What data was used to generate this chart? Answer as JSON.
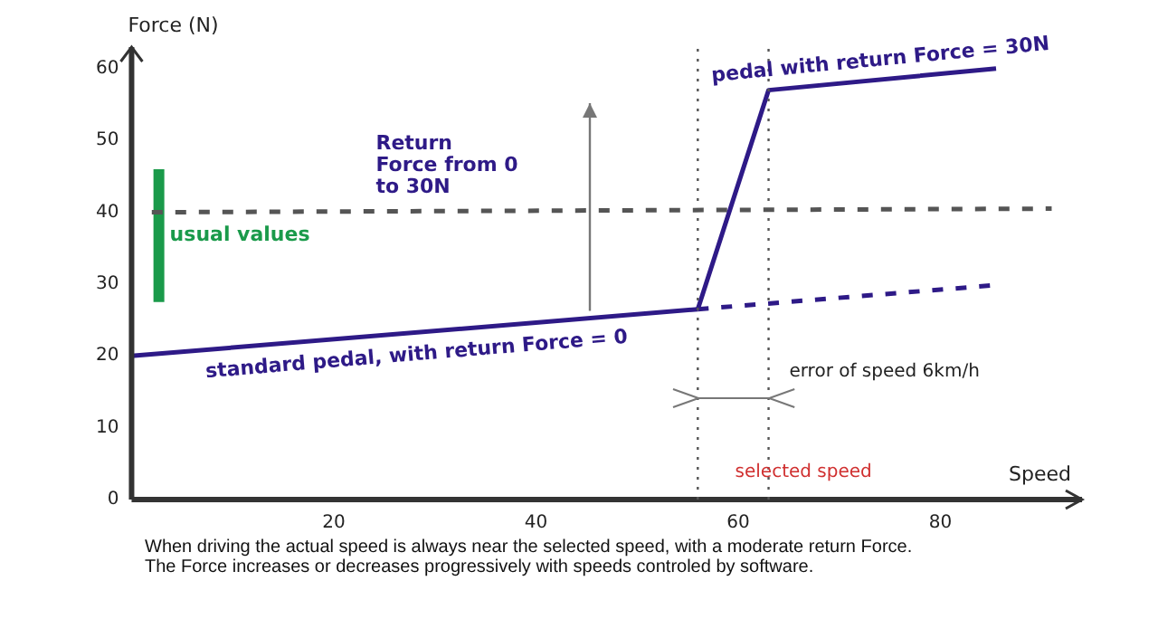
{
  "chart_data": {
    "type": "line",
    "xlabel": "Speed",
    "ylabel": "Force (N)",
    "xlim": [
      0,
      94
    ],
    "ylim": [
      0,
      63
    ],
    "xticks": [
      20,
      40,
      60,
      80
    ],
    "yticks": [
      0,
      10,
      20,
      30,
      40,
      50,
      60
    ],
    "grid": false,
    "legend": false,
    "marker": "none",
    "series": [
      {
        "name": "standard pedal, with return Force = 0",
        "color": "#2e1a87",
        "x": [
          0,
          56
        ],
        "values": [
          20,
          26.5
        ]
      },
      {
        "name": "pedal with return Force = 30N",
        "color": "#2e1a87",
        "x": [
          56,
          63,
          85.5
        ],
        "values": [
          26.5,
          57,
          60
        ]
      },
      {
        "color": "#2e1a87",
        "x": [
          56,
          85
        ],
        "values": [
          26.5,
          29.8
        ],
        "line_style": "dashed"
      },
      {
        "color": "#555555",
        "x": [
          2,
          91
        ],
        "values": [
          40,
          40.5
        ],
        "line_style": "dashed"
      },
      {
        "name": "usual values",
        "color": "#1a9a4a",
        "x": [
          2.7,
          2.7
        ],
        "values": [
          27.5,
          46
        ]
      }
    ],
    "ref_lines": [
      {
        "axis": "x",
        "value": 56,
        "color": "#555555",
        "line_style": "dotted"
      },
      {
        "axis": "x",
        "value": 63,
        "color": "#555555",
        "line_style": "dotted"
      }
    ],
    "annotations": [
      "Return Force from 0 to 30N",
      "error of speed 6km/h",
      "selected speed",
      "When driving the actual speed is always near the selected speed, with a moderate return Force. The Force increases or decreases progressively with speeds controled by software."
    ]
  }
}
